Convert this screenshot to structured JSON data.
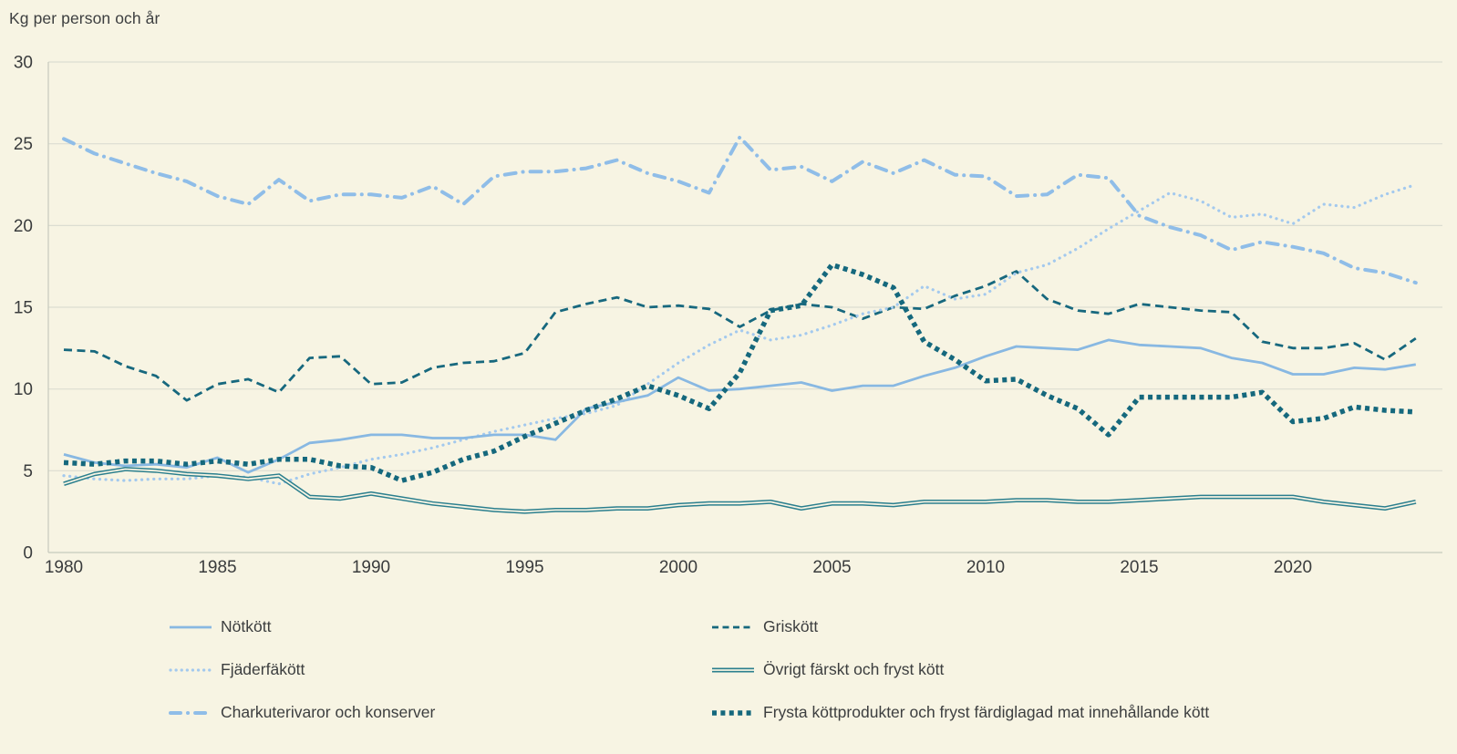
{
  "chart_data": {
    "type": "line",
    "title": "Kg per person och år",
    "xlabel": "",
    "ylabel": "Kg per person och år",
    "ylim": [
      0,
      30
    ],
    "y_ticks": [
      0,
      5,
      10,
      15,
      20,
      25,
      30
    ],
    "x_ticks": [
      1980,
      1985,
      1990,
      1995,
      2000,
      2005,
      2010,
      2015,
      2020
    ],
    "x_range": [
      1980,
      2024
    ],
    "grid": "horizontal",
    "legend_position": "bottom",
    "background_color": "#f7f4e3",
    "gridline_color": "#dcddd2",
    "axis_color": "#c6c9bd",
    "text_color": "#3c3e3f",
    "x": [
      1980,
      1981,
      1982,
      1983,
      1984,
      1985,
      1986,
      1987,
      1988,
      1989,
      1990,
      1991,
      1992,
      1993,
      1994,
      1995,
      1996,
      1997,
      1998,
      1999,
      2000,
      2001,
      2002,
      2003,
      2004,
      2005,
      2006,
      2007,
      2008,
      2009,
      2010,
      2011,
      2012,
      2013,
      2014,
      2015,
      2016,
      2017,
      2018,
      2019,
      2020,
      2021,
      2022,
      2023,
      2024
    ],
    "series": [
      {
        "name": "Nötkött",
        "color": "#88b8e2",
        "style": "solid",
        "values": [
          6.0,
          5.5,
          5.3,
          5.4,
          5.2,
          5.8,
          4.9,
          5.7,
          6.7,
          6.9,
          7.2,
          7.2,
          7.0,
          7.0,
          7.2,
          7.2,
          6.9,
          8.8,
          9.2,
          9.6,
          10.7,
          9.9,
          10.0,
          10.2,
          10.4,
          9.9,
          10.2,
          10.2,
          10.8,
          11.3,
          12.0,
          12.6,
          12.5,
          12.4,
          13.0,
          12.7,
          12.6,
          12.5,
          11.9,
          11.6,
          10.9,
          10.9,
          11.3,
          11.2,
          11.5
        ]
      },
      {
        "name": "Griskött",
        "color": "#17687e",
        "style": "dashed",
        "values": [
          12.4,
          12.3,
          11.4,
          10.8,
          9.3,
          10.3,
          10.6,
          9.8,
          11.9,
          12.0,
          10.3,
          10.4,
          11.3,
          11.6,
          11.7,
          12.2,
          14.7,
          15.2,
          15.6,
          15.0,
          15.1,
          14.9,
          13.8,
          14.8,
          15.2,
          15.0,
          14.3,
          15.0,
          14.9,
          15.7,
          16.3,
          17.2,
          15.5,
          14.8,
          14.6,
          15.2,
          15.0,
          14.8,
          14.7,
          12.9,
          12.5,
          12.5,
          12.8,
          11.8,
          13.1
        ]
      },
      {
        "name": "Fjäderfäkött",
        "color": "#a3c9ee",
        "style": "dotted",
        "values": [
          4.7,
          4.5,
          4.4,
          4.5,
          4.5,
          4.7,
          4.6,
          4.2,
          4.8,
          5.2,
          5.7,
          6.0,
          6.4,
          6.9,
          7.4,
          7.8,
          8.2,
          8.5,
          9.0,
          10.3,
          11.6,
          12.7,
          13.6,
          13.0,
          13.3,
          13.9,
          14.6,
          15.0,
          16.3,
          15.5,
          15.8,
          17.1,
          17.6,
          18.6,
          19.8,
          20.9,
          22.0,
          21.5,
          20.5,
          20.7,
          20.1,
          21.3,
          21.1,
          21.9,
          22.5
        ]
      },
      {
        "name": "Övrigt färskt och fryst kött",
        "color": "#2b7f8e",
        "style": "double-solid",
        "values": [
          4.2,
          4.8,
          5.1,
          5.0,
          4.8,
          4.7,
          4.5,
          4.7,
          3.4,
          3.3,
          3.6,
          3.3,
          3.0,
          2.8,
          2.6,
          2.5,
          2.6,
          2.6,
          2.7,
          2.7,
          2.9,
          3.0,
          3.0,
          3.1,
          2.7,
          3.0,
          3.0,
          2.9,
          3.1,
          3.1,
          3.1,
          3.2,
          3.2,
          3.1,
          3.1,
          3.2,
          3.3,
          3.4,
          3.4,
          3.4,
          3.4,
          3.1,
          2.9,
          2.7,
          3.1
        ]
      },
      {
        "name": "Charkuterivaror och konserver",
        "color": "#8fbde8",
        "style": "dash-dot",
        "values": [
          25.3,
          24.4,
          23.8,
          23.2,
          22.7,
          21.8,
          21.3,
          22.8,
          21.5,
          21.9,
          21.9,
          21.7,
          22.4,
          21.3,
          23.0,
          23.3,
          23.3,
          23.5,
          24.0,
          23.2,
          22.7,
          22.0,
          25.4,
          23.4,
          23.6,
          22.7,
          23.9,
          23.2,
          24.0,
          23.1,
          23.0,
          21.8,
          21.9,
          23.1,
          22.9,
          20.6,
          19.9,
          19.4,
          18.5,
          19.0,
          18.7,
          18.3,
          17.4,
          17.1,
          16.5
        ]
      },
      {
        "name": "Frysta köttprodukter och fryst färdiglagad mat innehållande kött",
        "color": "#15687d",
        "style": "thick-dotted",
        "values": [
          5.5,
          5.4,
          5.6,
          5.6,
          5.4,
          5.6,
          5.4,
          5.7,
          5.7,
          5.3,
          5.2,
          4.4,
          4.9,
          5.7,
          6.2,
          7.1,
          7.9,
          8.7,
          9.4,
          10.2,
          9.6,
          8.8,
          11.0,
          14.8,
          15.1,
          17.6,
          17.0,
          16.2,
          12.9,
          11.8,
          10.5,
          10.6,
          9.6,
          8.8,
          7.2,
          9.5,
          9.5,
          9.5,
          9.5,
          9.8,
          8.0,
          8.2,
          8.9,
          8.7,
          8.6
        ]
      }
    ]
  }
}
